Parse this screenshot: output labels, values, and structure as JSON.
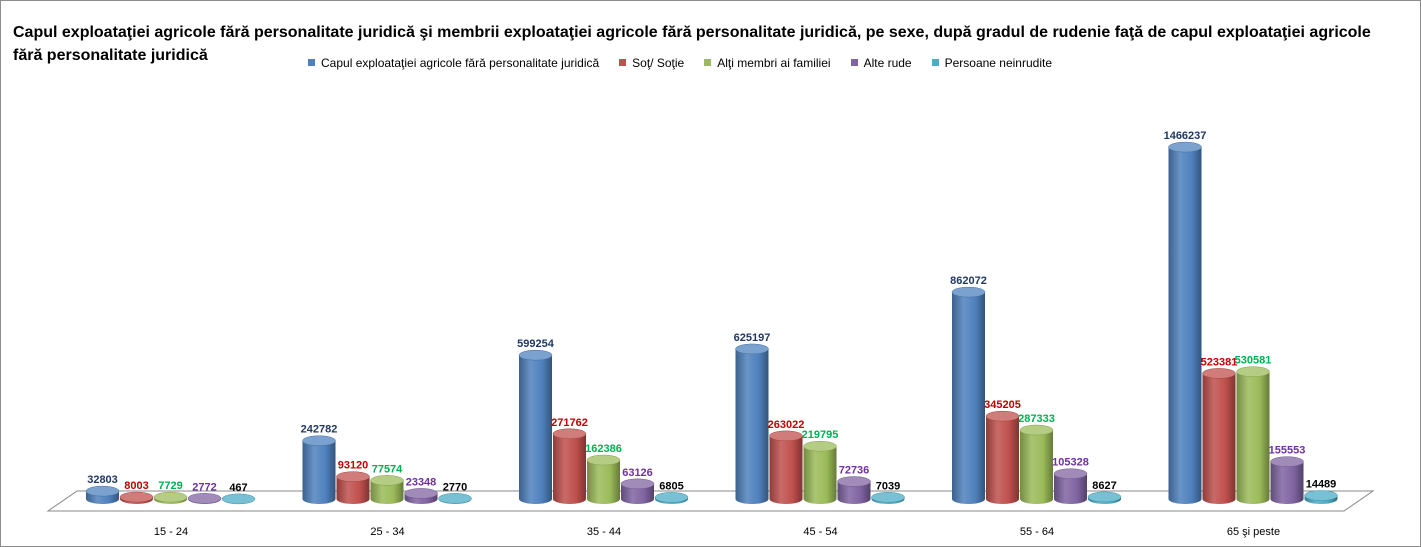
{
  "chart_data": {
    "type": "bar",
    "title": "Capul exploataţiei agricole fără personalitate juridică şi membrii exploataţiei agricole fără personalitate juridică, pe sexe, după gradul de rudenie faţă de capul exploataţiei agricole fără personalitate juridică",
    "categories": [
      "15 - 24",
      "25 - 34",
      "35 - 44",
      "45 - 54",
      "55 - 64",
      "65 şi peste"
    ],
    "series": [
      {
        "name": "Capul exploataţiei agricole fără personalitate juridică",
        "color": "#4f81bd",
        "label_color": "#1f3864",
        "values": [
          32803,
          242782,
          599254,
          625197,
          862072,
          1466237
        ]
      },
      {
        "name": "Soţ/ Soţie",
        "color": "#c0504d",
        "label_color": "#c00000",
        "values": [
          8003,
          93120,
          271762,
          263022,
          345205,
          523381
        ]
      },
      {
        "name": "Alţi membri ai familiei",
        "color": "#9bbb59",
        "label_color": "#00b050",
        "values": [
          7729,
          77574,
          162386,
          219795,
          287333,
          530581
        ]
      },
      {
        "name": "Alte rude",
        "color": "#8064a2",
        "label_color": "#7030a0",
        "values": [
          2772,
          23348,
          63126,
          72736,
          105328,
          155553
        ]
      },
      {
        "name": "Persoane neinrudite",
        "color": "#4bacc6",
        "label_color": "#000000",
        "values": [
          467,
          2770,
          6805,
          7039,
          8627,
          14489
        ]
      }
    ],
    "xlabel": "",
    "ylabel": "",
    "ylim": [
      0,
      1500000
    ],
    "grid": false,
    "legend": "top",
    "style": "3d-cylinder"
  }
}
